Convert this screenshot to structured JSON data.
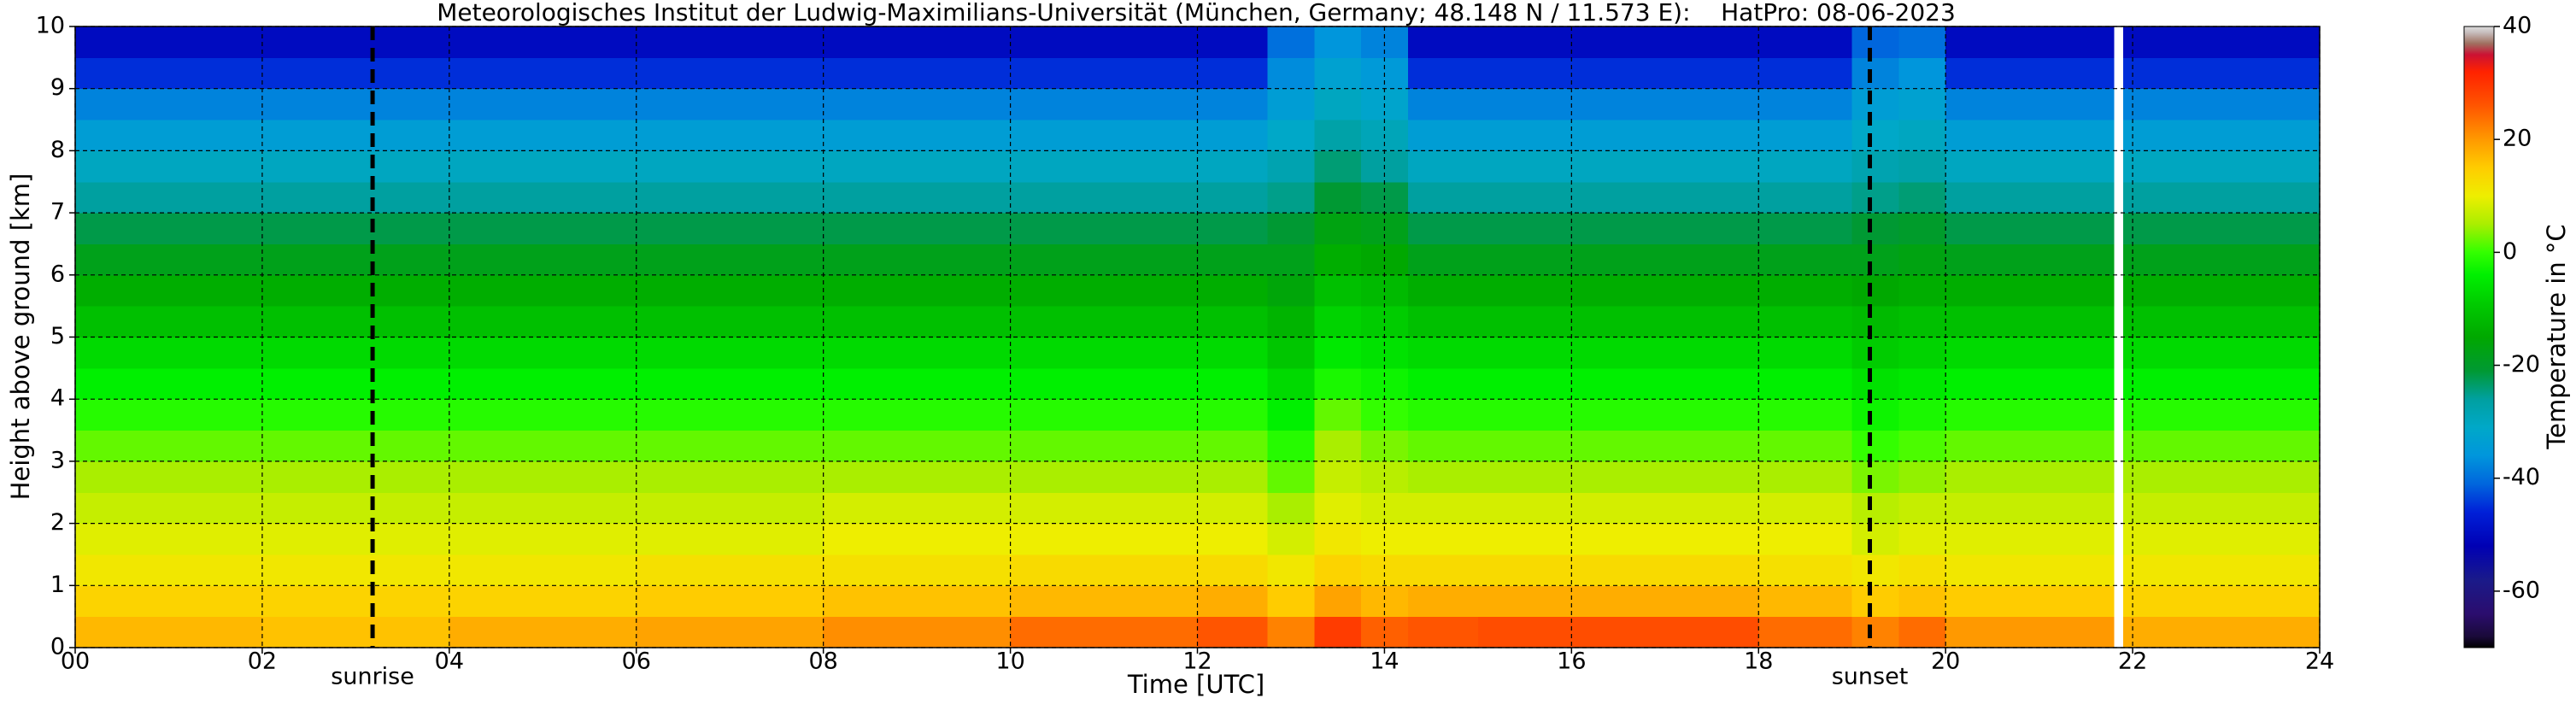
{
  "chart_data": {
    "type": "heatmap",
    "title": "Meteorologisches Institut der Ludwig-Maximilians-Universität (München, Germany; 48.148 N / 11.573 E):    HatPro: 08-06-2023",
    "x_label": "Time [UTC]",
    "y_label": "Height above ground [km]",
    "colorbar_label": "Temperature in °C",
    "x_edges": [
      0,
      2,
      4,
      6,
      8,
      10,
      12,
      12.75,
      13.25,
      13.75,
      14.25,
      15,
      16,
      18,
      19,
      19.5,
      20,
      21.8,
      21.9,
      24
    ],
    "y_edges": [
      0,
      0.5,
      1,
      1.5,
      2,
      2.5,
      3,
      3.5,
      4,
      4.5,
      5,
      5.5,
      6,
      6.5,
      7,
      7.5,
      8,
      8.5,
      9,
      9.5,
      10
    ],
    "values": [
      [
        17,
        14,
        11,
        9,
        7,
        5,
        2,
        -1,
        -4,
        -7,
        -11,
        -14,
        -18,
        -22,
        -26,
        -30,
        -34,
        -38,
        -45,
        -50
      ],
      [
        16,
        14,
        11,
        9,
        7,
        5,
        2,
        -1,
        -4,
        -7,
        -11,
        -14,
        -18,
        -22,
        -26,
        -30,
        -34,
        -38,
        -45,
        -50
      ],
      [
        18,
        14,
        11,
        9,
        7,
        5,
        2,
        -1,
        -4,
        -7,
        -11,
        -14,
        -18,
        -22,
        -26,
        -30,
        -34,
        -38,
        -45,
        -50
      ],
      [
        19,
        15,
        12,
        9,
        7,
        5,
        2,
        -1,
        -4,
        -7,
        -11,
        -14,
        -18,
        -22,
        -26,
        -30,
        -34,
        -38,
        -45,
        -50
      ],
      [
        21,
        16,
        12,
        10,
        8,
        5,
        2,
        -1,
        -4,
        -7,
        -11,
        -14,
        -18,
        -22,
        -26,
        -30,
        -34,
        -38,
        -45,
        -50
      ],
      [
        24,
        17,
        13,
        10,
        8,
        5,
        2,
        -1,
        -4,
        -7,
        -11,
        -14,
        -18,
        -22,
        -26,
        -30,
        -34,
        -38,
        -45,
        -50
      ],
      [
        26,
        18,
        13,
        10,
        8,
        5,
        2,
        -1,
        -4,
        -7,
        -11,
        -14,
        -18,
        -22,
        -26,
        -30,
        -34,
        -38,
        -45,
        -50
      ],
      [
        22,
        15,
        11,
        8,
        5,
        2,
        -1,
        -4,
        -7,
        -10,
        -13,
        -16,
        -18,
        -21,
        -25,
        -28,
        -31,
        -34,
        -37,
        -40
      ],
      [
        29,
        19,
        14,
        11,
        9,
        7,
        5,
        2,
        -2,
        -5,
        -8,
        -11,
        -14,
        -17,
        -21,
        -24,
        -27,
        -30,
        -33,
        -36
      ],
      [
        25,
        17,
        13,
        10,
        8,
        6,
        3,
        0,
        -3,
        -6,
        -9,
        -12,
        -15,
        -18,
        -22,
        -26,
        -29,
        -32,
        -35,
        -38
      ],
      [
        26,
        18,
        13,
        10,
        8,
        5,
        2,
        -1,
        -4,
        -7,
        -11,
        -14,
        -18,
        -22,
        -26,
        -30,
        -34,
        -38,
        -45,
        -50
      ],
      [
        27,
        18,
        13,
        10,
        8,
        5,
        2,
        -1,
        -4,
        -7,
        -11,
        -14,
        -18,
        -22,
        -26,
        -30,
        -34,
        -38,
        -45,
        -50
      ],
      [
        27,
        18,
        13,
        10,
        8,
        5,
        2,
        -1,
        -4,
        -7,
        -11,
        -14,
        -18,
        -22,
        -26,
        -30,
        -34,
        -38,
        -45,
        -50
      ],
      [
        24,
        17,
        12,
        10,
        8,
        5,
        2,
        -1,
        -4,
        -7,
        -11,
        -14,
        -18,
        -22,
        -26,
        -30,
        -34,
        -38,
        -45,
        -50
      ],
      [
        22,
        15,
        11,
        8,
        6,
        3,
        0,
        -3,
        -6,
        -9,
        -12,
        -15,
        -18,
        -21,
        -25,
        -28,
        -31,
        -34,
        -38,
        -41
      ],
      [
        24,
        16,
        12,
        9,
        7,
        4,
        1,
        -2,
        -5,
        -8,
        -11,
        -14,
        -17,
        -20,
        -24,
        -27,
        -30,
        -33,
        -36,
        -40
      ],
      [
        20,
        15,
        11,
        9,
        7,
        5,
        2,
        -1,
        -4,
        -7,
        -11,
        -14,
        -18,
        -22,
        -26,
        -30,
        -34,
        -38,
        -45,
        -50
      ],
      [
        null,
        null,
        null,
        null,
        null,
        null,
        null,
        null,
        null,
        null,
        null,
        null,
        null,
        null,
        null,
        null,
        null,
        null,
        null,
        null
      ],
      [
        18,
        14,
        11,
        9,
        7,
        5,
        2,
        -1,
        -4,
        -7,
        -11,
        -14,
        -18,
        -22,
        -26,
        -30,
        -34,
        -38,
        -45,
        -50
      ]
    ],
    "xlim": [
      0,
      24
    ],
    "ylim": [
      0,
      10
    ],
    "xticks": [
      {
        "value": 0,
        "label": "00"
      },
      {
        "value": 2,
        "label": "02"
      },
      {
        "value": 4,
        "label": "04"
      },
      {
        "value": 6,
        "label": "06"
      },
      {
        "value": 8,
        "label": "08"
      },
      10,
      12,
      14,
      16,
      18,
      20,
      22,
      24
    ],
    "yticks": [
      0,
      1,
      2,
      3,
      4,
      5,
      6,
      7,
      8,
      9,
      10
    ],
    "grid": true,
    "annotations": [
      {
        "text": "sunrise",
        "x": 3.18
      },
      {
        "text": "sunset",
        "x": 19.19
      }
    ],
    "colorbar_lim": [
      -70,
      40
    ],
    "colorbar_ticks": [
      -60,
      -40,
      -20,
      0,
      20,
      40
    ],
    "colormap": [
      [
        -70,
        "#000000"
      ],
      [
        -68,
        "#1a0a3a"
      ],
      [
        -64,
        "#2b0d6e"
      ],
      [
        -58,
        "#1a1a8a"
      ],
      [
        -52,
        "#0000b4"
      ],
      [
        -46,
        "#0020d8"
      ],
      [
        -41,
        "#0066dd"
      ],
      [
        -36,
        "#0096dc"
      ],
      [
        -31,
        "#00a8c8"
      ],
      [
        -26,
        "#00a0a0"
      ],
      [
        -21,
        "#009933"
      ],
      [
        -15,
        "#00a800"
      ],
      [
        -9,
        "#00cc00"
      ],
      [
        -4,
        "#00f000"
      ],
      [
        0,
        "#33ff00"
      ],
      [
        5,
        "#aaee00"
      ],
      [
        10,
        "#eeee00"
      ],
      [
        15,
        "#ffcc00"
      ],
      [
        20,
        "#ff9900"
      ],
      [
        26,
        "#ff5500"
      ],
      [
        32,
        "#ff2200"
      ],
      [
        35,
        "#cc1133"
      ],
      [
        37,
        "#a07060"
      ],
      [
        39,
        "#c8c0c0"
      ],
      [
        40,
        "#dddddd"
      ]
    ]
  }
}
